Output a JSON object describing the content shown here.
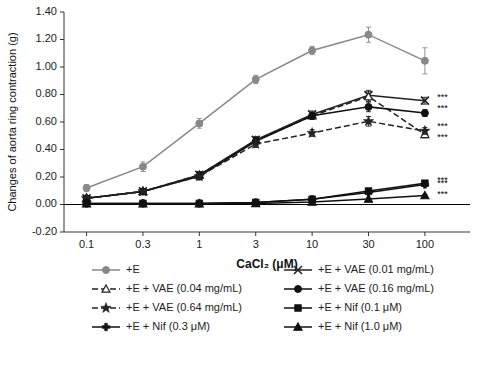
{
  "chart_data": {
    "type": "line",
    "categories": [
      "0.1",
      "0.3",
      "1",
      "3",
      "10",
      "30",
      "100"
    ],
    "xlabel": "CaCl₂ (μM)",
    "ylabel": "Changes of aorta ring contraction (g)",
    "ylim": [
      -0.2,
      1.4
    ],
    "yticks": [
      {
        "value": -0.2,
        "label": "-0.20"
      },
      {
        "value": 0.0,
        "label": "0.00"
      },
      {
        "value": 0.2,
        "label": "0.20"
      },
      {
        "value": 0.4,
        "label": "0.40"
      },
      {
        "value": 0.6,
        "label": "0.60"
      },
      {
        "value": 0.8,
        "label": "0.80"
      },
      {
        "value": 1.0,
        "label": "1.00"
      },
      {
        "value": 1.2,
        "label": "1.20"
      },
      {
        "value": 1.4,
        "label": "1.40"
      }
    ],
    "grid": false,
    "legend": "bottom",
    "reference_lines": [
      0
    ],
    "series": [
      {
        "name": "+E",
        "color": "#888888",
        "marker": "circle",
        "line_style": "solid",
        "values": [
          0.12,
          0.275,
          0.59,
          0.91,
          1.12,
          1.235,
          1.045
        ],
        "errors": [
          0.025,
          0.035,
          0.035,
          0.03,
          0.03,
          0.055,
          0.095
        ]
      },
      {
        "name": "+E + VAE (0.01 mg/mL)",
        "color": "#222222",
        "marker": "x",
        "line_style": "solid",
        "values": [
          0.045,
          0.095,
          0.215,
          0.47,
          0.655,
          0.795,
          0.755
        ],
        "errors": [
          0.015,
          0.018,
          0.025,
          0.025,
          0.025,
          0.035,
          0.025
        ]
      },
      {
        "name": "+E + VAE (0.04 mg/mL)",
        "color": "#222222",
        "marker": "triangle-open",
        "line_style": "dashed",
        "values": [
          0.045,
          0.095,
          0.215,
          0.465,
          0.645,
          0.785,
          0.51
        ],
        "errors": [
          0.015,
          0.018,
          0.025,
          0.025,
          0.025,
          0.035,
          0.025
        ]
      },
      {
        "name": "+E + VAE (0.16 mg/mL)",
        "color": "#111111",
        "marker": "circle",
        "line_style": "solid",
        "values": [
          0.045,
          0.095,
          0.205,
          0.46,
          0.645,
          0.71,
          0.665
        ],
        "errors": [
          0.015,
          0.018,
          0.025,
          0.025,
          0.025,
          0.035,
          0.025
        ]
      },
      {
        "name": "+E + VAE (0.64 mg/mL)",
        "color": "#222222",
        "marker": "star",
        "line_style": "dashed",
        "values": [
          0.045,
          0.095,
          0.205,
          0.44,
          0.52,
          0.605,
          0.535
        ],
        "errors": [
          0.015,
          0.018,
          0.025,
          0.025,
          0.025,
          0.035,
          0.025
        ]
      },
      {
        "name": "+E + Nif (0.1 μM)",
        "color": "#111111",
        "marker": "square",
        "line_style": "solid",
        "values": [
          0.008,
          0.008,
          0.008,
          0.015,
          0.038,
          0.098,
          0.155
        ],
        "errors": [
          0.004,
          0.004,
          0.004,
          0.004,
          0.008,
          0.01,
          0.01
        ]
      },
      {
        "name": "+E + Nif (0.3 μM)",
        "color": "#111111",
        "marker": "plus",
        "line_style": "solid",
        "values": [
          0.008,
          0.008,
          0.008,
          0.015,
          0.038,
          0.088,
          0.145
        ],
        "errors": [
          0.004,
          0.004,
          0.004,
          0.004,
          0.008,
          0.01,
          0.01
        ]
      },
      {
        "name": "+E + Nif (1.0 μM)",
        "color": "#111111",
        "marker": "triangle",
        "line_style": "solid",
        "values": [
          0.005,
          0.005,
          0.005,
          0.008,
          0.018,
          0.04,
          0.065
        ],
        "errors": [
          0.003,
          0.003,
          0.003,
          0.003,
          0.004,
          0.006,
          0.007
        ]
      }
    ],
    "annotations": [
      {
        "text": "***",
        "y": 0.775
      },
      {
        "text": "***",
        "y": 0.695
      },
      {
        "text": "***",
        "y": 0.565
      },
      {
        "text": "***",
        "y": 0.49
      },
      {
        "text": "***",
        "y": 0.172
      },
      {
        "text": "***",
        "y": 0.152
      },
      {
        "text": "***",
        "y": 0.075
      }
    ]
  }
}
